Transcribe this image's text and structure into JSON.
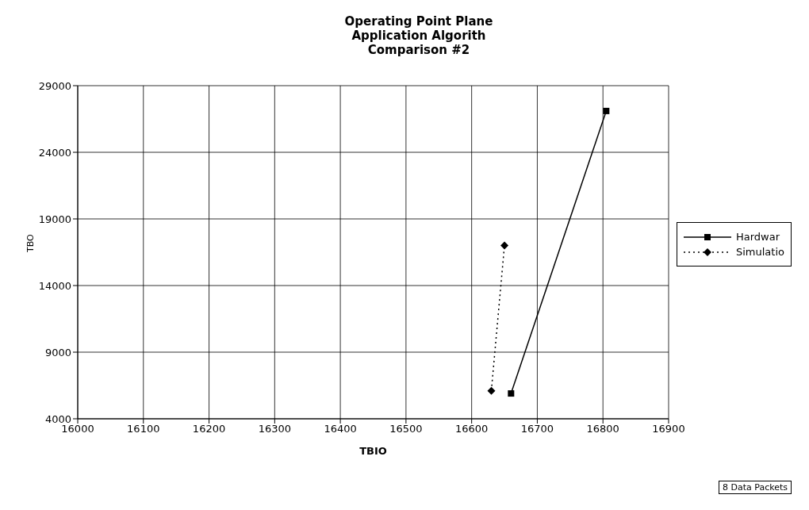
{
  "chart_data": {
    "type": "line",
    "title": "Operating Point Plane\nApplication Algorith\nComparison #2",
    "xlabel": "TBIO",
    "ylabel": "TBO",
    "series": [
      {
        "name": "Hardwar",
        "color": "#000000",
        "x": [
          16660,
          16805
        ],
        "values": [
          5900,
          27100
        ],
        "marker": "square",
        "line_style": "solid"
      },
      {
        "name": "Simulatio",
        "color": "#000000",
        "x": [
          16630,
          16650
        ],
        "values": [
          6100,
          17000
        ],
        "marker": "diamond",
        "line_style": "dotted"
      }
    ],
    "xlim": [
      16000,
      16900
    ],
    "xticks": [
      16000,
      16100,
      16200,
      16300,
      16400,
      16500,
      16600,
      16700,
      16800,
      16900
    ],
    "ylim": [
      4000,
      29000
    ],
    "yticks": [
      4000,
      9000,
      14000,
      19000,
      24000,
      29000
    ],
    "grid": true,
    "legend": "right",
    "annotations": [
      "8 Data Packets"
    ]
  }
}
